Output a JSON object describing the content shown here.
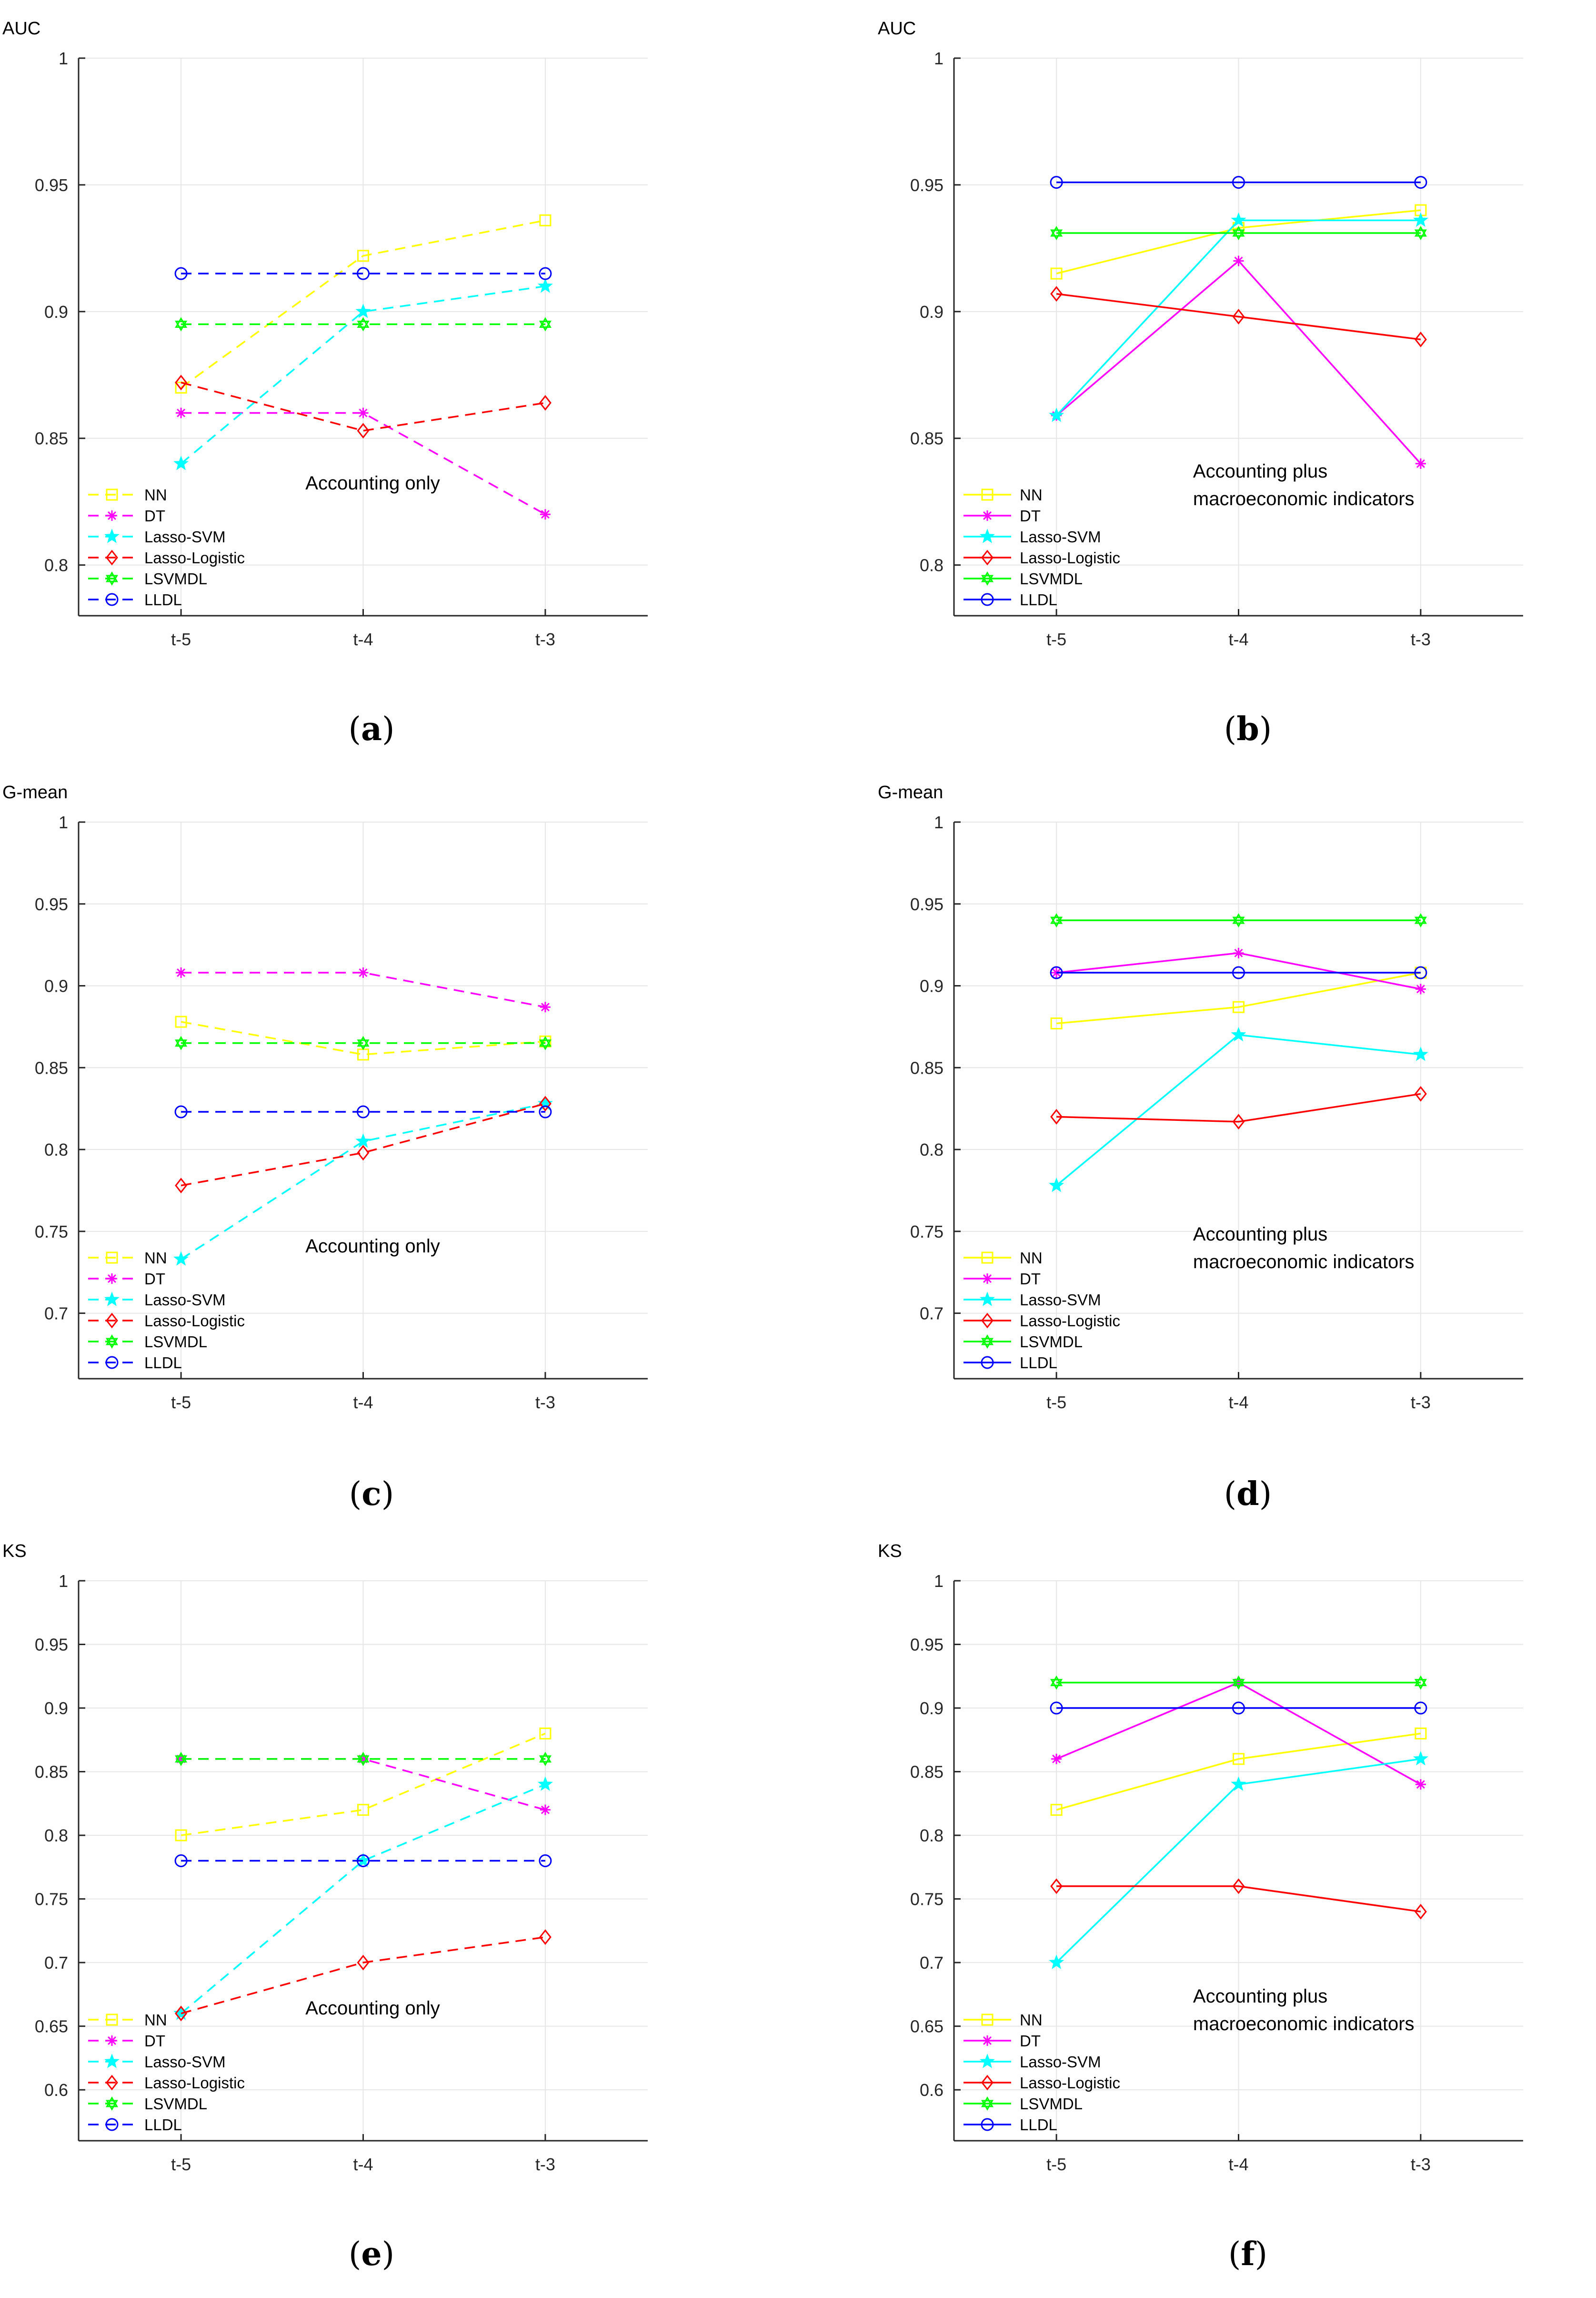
{
  "colors": {
    "NN": "#ffff00",
    "DT": "#ff00ff",
    "Lasso-SVM": "#00ffff",
    "Lasso-Logistic": "#ff0000",
    "LSVMDL": "#00ff00",
    "LLDL": "#0000ff",
    "grid": "#e6e6e6",
    "axis": "#262626"
  },
  "markers": {
    "NN": "square",
    "DT": "asterisk",
    "Lasso-SVM": "star",
    "Lasso-Logistic": "diamond",
    "LSVMDL": "hexagram",
    "LLDL": "circle"
  },
  "chart_data": [
    {
      "id": "a",
      "caption": {
        "open": "(",
        "letter": "a",
        "close": ")"
      },
      "type": "line",
      "title": "AUC",
      "ylabel": "AUC",
      "annotation": [
        "Accounting only"
      ],
      "line_style": "dashed",
      "categories": [
        "t-5",
        "t-4",
        "t-3"
      ],
      "ylim": [
        0.78,
        1.0
      ],
      "yticks": [
        "0.8",
        "0.85",
        "0.9",
        "0.95",
        "1"
      ],
      "series": [
        {
          "name": "NN",
          "values": [
            0.87,
            0.922,
            0.936
          ]
        },
        {
          "name": "DT",
          "values": [
            0.86,
            0.86,
            0.82
          ]
        },
        {
          "name": "Lasso-SVM",
          "values": [
            0.84,
            0.9,
            0.91
          ]
        },
        {
          "name": "Lasso-Logistic",
          "values": [
            0.872,
            0.853,
            0.864
          ]
        },
        {
          "name": "LSVMDL",
          "values": [
            0.895,
            0.895,
            0.895
          ]
        },
        {
          "name": "LLDL",
          "values": [
            0.915,
            0.915,
            0.915
          ]
        }
      ]
    },
    {
      "id": "b",
      "caption": {
        "open": "(",
        "letter": "b",
        "close": ")"
      },
      "type": "line",
      "title": "AUC",
      "ylabel": "AUC",
      "annotation": [
        "Accounting plus",
        "macroeconomic indicators"
      ],
      "line_style": "solid",
      "categories": [
        "t-5",
        "t-4",
        "t-3"
      ],
      "ylim": [
        0.78,
        1.0
      ],
      "yticks": [
        "0.8",
        "0.85",
        "0.9",
        "0.95",
        "1"
      ],
      "series": [
        {
          "name": "NN",
          "values": [
            0.915,
            0.933,
            0.94
          ]
        },
        {
          "name": "DT",
          "values": [
            0.859,
            0.92,
            0.84
          ]
        },
        {
          "name": "Lasso-SVM",
          "values": [
            0.859,
            0.936,
            0.936
          ]
        },
        {
          "name": "Lasso-Logistic",
          "values": [
            0.907,
            0.898,
            0.889
          ]
        },
        {
          "name": "LSVMDL",
          "values": [
            0.931,
            0.931,
            0.931
          ]
        },
        {
          "name": "LLDL",
          "values": [
            0.951,
            0.951,
            0.951
          ]
        }
      ]
    },
    {
      "id": "c",
      "caption": {
        "open": "(",
        "letter": "c",
        "close": ")"
      },
      "type": "line",
      "title": "G-mean",
      "ylabel": "G-mean",
      "annotation": [
        "Accounting only"
      ],
      "line_style": "dashed",
      "categories": [
        "t-5",
        "t-4",
        "t-3"
      ],
      "ylim": [
        0.66,
        1.0
      ],
      "yticks": [
        "0.7",
        "0.75",
        "0.8",
        "0.85",
        "0.9",
        "0.95",
        "1"
      ],
      "series": [
        {
          "name": "NN",
          "values": [
            0.878,
            0.858,
            0.866
          ]
        },
        {
          "name": "DT",
          "values": [
            0.908,
            0.908,
            0.887
          ]
        },
        {
          "name": "Lasso-SVM",
          "values": [
            0.733,
            0.805,
            0.828
          ]
        },
        {
          "name": "Lasso-Logistic",
          "values": [
            0.778,
            0.798,
            0.828
          ]
        },
        {
          "name": "LSVMDL",
          "values": [
            0.865,
            0.865,
            0.865
          ]
        },
        {
          "name": "LLDL",
          "values": [
            0.823,
            0.823,
            0.823
          ]
        }
      ]
    },
    {
      "id": "d",
      "caption": {
        "open": "(",
        "letter": "d",
        "close": ")"
      },
      "type": "line",
      "title": "G-mean",
      "ylabel": "G-mean",
      "annotation": [
        "Accounting plus",
        "macroeconomic indicators"
      ],
      "line_style": "solid",
      "categories": [
        "t-5",
        "t-4",
        "t-3"
      ],
      "ylim": [
        0.66,
        1.0
      ],
      "yticks": [
        "0.7",
        "0.75",
        "0.8",
        "0.85",
        "0.9",
        "0.95",
        "1"
      ],
      "series": [
        {
          "name": "NN",
          "values": [
            0.877,
            0.887,
            0.908
          ]
        },
        {
          "name": "DT",
          "values": [
            0.908,
            0.92,
            0.898
          ]
        },
        {
          "name": "Lasso-SVM",
          "values": [
            0.778,
            0.87,
            0.858
          ]
        },
        {
          "name": "Lasso-Logistic",
          "values": [
            0.82,
            0.817,
            0.834
          ]
        },
        {
          "name": "LSVMDL",
          "values": [
            0.94,
            0.94,
            0.94
          ]
        },
        {
          "name": "LLDL",
          "values": [
            0.908,
            0.908,
            0.908
          ]
        }
      ]
    },
    {
      "id": "e",
      "caption": {
        "open": "(",
        "letter": "e",
        "close": ")"
      },
      "type": "line",
      "title": "KS",
      "ylabel": "KS",
      "annotation": [
        "Accounting only"
      ],
      "line_style": "dashed",
      "categories": [
        "t-5",
        "t-4",
        "t-3"
      ],
      "ylim": [
        0.56,
        1.0
      ],
      "yticks": [
        "0.6",
        "0.65",
        "0.7",
        "0.75",
        "0.8",
        "0.85",
        "0.9",
        "0.95",
        "1"
      ],
      "series": [
        {
          "name": "NN",
          "values": [
            0.8,
            0.82,
            0.88
          ]
        },
        {
          "name": "DT",
          "values": [
            0.86,
            0.86,
            0.82
          ]
        },
        {
          "name": "Lasso-SVM",
          "values": [
            0.66,
            0.78,
            0.84
          ]
        },
        {
          "name": "Lasso-Logistic",
          "values": [
            0.66,
            0.7,
            0.72
          ]
        },
        {
          "name": "LSVMDL",
          "values": [
            0.86,
            0.86,
            0.86
          ]
        },
        {
          "name": "LLDL",
          "values": [
            0.78,
            0.78,
            0.78
          ]
        }
      ]
    },
    {
      "id": "f",
      "caption": {
        "open": "(",
        "letter": "f",
        "close": ")"
      },
      "type": "line",
      "title": "KS",
      "ylabel": "KS",
      "annotation": [
        "Accounting plus",
        "macroeconomic indicators"
      ],
      "line_style": "solid",
      "categories": [
        "t-5",
        "t-4",
        "t-3"
      ],
      "ylim": [
        0.56,
        1.0
      ],
      "yticks": [
        "0.6",
        "0.65",
        "0.7",
        "0.75",
        "0.8",
        "0.85",
        "0.9",
        "0.95",
        "1"
      ],
      "series": [
        {
          "name": "NN",
          "values": [
            0.82,
            0.86,
            0.88
          ]
        },
        {
          "name": "DT",
          "values": [
            0.86,
            0.92,
            0.84
          ]
        },
        {
          "name": "Lasso-SVM",
          "values": [
            0.7,
            0.84,
            0.86
          ]
        },
        {
          "name": "Lasso-Logistic",
          "values": [
            0.76,
            0.76,
            0.74
          ]
        },
        {
          "name": "LSVMDL",
          "values": [
            0.92,
            0.92,
            0.92
          ]
        },
        {
          "name": "LLDL",
          "values": [
            0.9,
            0.9,
            0.9
          ]
        }
      ]
    }
  ]
}
